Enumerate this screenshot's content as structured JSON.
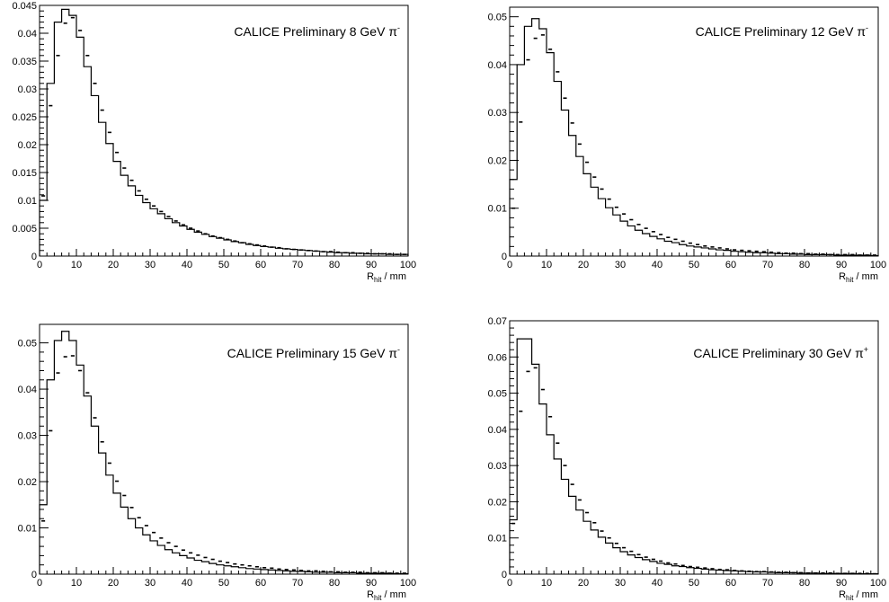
{
  "chart_data": [
    {
      "type": "histogram",
      "label": "CALICE Preliminary 8 GeV",
      "particle": "π",
      "charge": "-",
      "xlabel": "R",
      "xlabel_sub": "hit",
      "xlabel_unit": " / mm",
      "xlim": [
        0,
        100
      ],
      "ylim": [
        0,
        0.045
      ],
      "xticks": [
        0,
        10,
        20,
        30,
        40,
        50,
        60,
        70,
        80,
        90,
        100
      ],
      "yticks": [
        0,
        0.005,
        0.01,
        0.015,
        0.02,
        0.025,
        0.03,
        0.035,
        0.04,
        0.045
      ],
      "ytick_labels": [
        "0",
        "0.005",
        "0.01",
        "0.015",
        "0.02",
        "0.025",
        "0.03",
        "0.035",
        "0.04",
        "0.045"
      ],
      "bin_width": 2,
      "series": [
        {
          "style": "line",
          "values": [
            0.01,
            0.031,
            0.042,
            0.0443,
            0.0432,
            0.0393,
            0.034,
            0.0288,
            0.024,
            0.0202,
            0.017,
            0.0145,
            0.0126,
            0.0109,
            0.0096,
            0.0085,
            0.0076,
            0.0067,
            0.006,
            0.0054,
            0.0048,
            0.0043,
            0.0039,
            0.0035,
            0.0032,
            0.0029,
            0.0026,
            0.0024,
            0.0021,
            0.0019,
            0.0017,
            0.0016,
            0.0014,
            0.0013,
            0.0012,
            0.0011,
            0.001,
            0.0009,
            0.0008,
            0.0007,
            0.0006,
            0.0006,
            0.0005,
            0.0005,
            0.0004,
            0.0004,
            0.0004,
            0.0003,
            0.0003,
            0.0003
          ]
        },
        {
          "style": "markers",
          "values": [
            0.0108,
            0.027,
            0.036,
            0.0418,
            0.0428,
            0.0405,
            0.036,
            0.031,
            0.0262,
            0.0222,
            0.0186,
            0.0158,
            0.0136,
            0.0117,
            0.0102,
            0.009,
            0.008,
            0.0071,
            0.0063,
            0.0056,
            0.005,
            0.0045,
            0.004,
            0.0036,
            0.0033,
            0.003,
            0.0027,
            0.0024,
            0.0022,
            0.002,
            0.0018,
            0.0016,
            0.0015,
            0.0013,
            0.0012,
            0.0011,
            0.001,
            0.0009,
            0.0008,
            0.0008,
            0.0007,
            0.0006,
            0.0006,
            0.0005,
            0.0005,
            0.0004,
            0.0004,
            0.0004,
            0.0003,
            0.0003
          ]
        }
      ]
    },
    {
      "type": "histogram",
      "label": "CALICE Preliminary 12 GeV",
      "particle": "π",
      "charge": "-",
      "xlabel": "R",
      "xlabel_sub": "hit",
      "xlabel_unit": " / mm",
      "xlim": [
        0,
        100
      ],
      "ylim": [
        0,
        0.052
      ],
      "xticks": [
        0,
        10,
        20,
        30,
        40,
        50,
        60,
        70,
        80,
        90,
        100
      ],
      "yticks": [
        0,
        0.01,
        0.02,
        0.03,
        0.04,
        0.05
      ],
      "ytick_labels": [
        "0",
        "0.01",
        "0.02",
        "0.03",
        "0.04",
        "0.05"
      ],
      "bin_width": 2,
      "series": [
        {
          "style": "line",
          "values": [
            0.016,
            0.04,
            0.048,
            0.0496,
            0.0475,
            0.0425,
            0.0365,
            0.0305,
            0.0252,
            0.0208,
            0.0172,
            0.0144,
            0.012,
            0.0101,
            0.0086,
            0.0073,
            0.0063,
            0.0054,
            0.0047,
            0.0041,
            0.0036,
            0.0031,
            0.0028,
            0.0024,
            0.0021,
            0.0019,
            0.0017,
            0.0015,
            0.0013,
            0.0012,
            0.001,
            0.0009,
            0.0008,
            0.0007,
            0.0007,
            0.0006,
            0.0005,
            0.0005,
            0.0004,
            0.0004,
            0.0003,
            0.0003,
            0.0003,
            0.0003,
            0.0002,
            0.0002,
            0.0002,
            0.0002,
            0.0002,
            0.0001
          ]
        },
        {
          "style": "markers",
          "values": [
            0.01,
            0.028,
            0.041,
            0.0455,
            0.0462,
            0.0432,
            0.0385,
            0.033,
            0.0278,
            0.0234,
            0.0196,
            0.0165,
            0.014,
            0.0119,
            0.0102,
            0.0088,
            0.0076,
            0.0066,
            0.0058,
            0.0051,
            0.0045,
            0.0039,
            0.0035,
            0.0031,
            0.0027,
            0.0024,
            0.0021,
            0.0019,
            0.0017,
            0.0015,
            0.0013,
            0.0012,
            0.0011,
            0.001,
            0.0009,
            0.0008,
            0.0007,
            0.0006,
            0.0006,
            0.0005,
            0.0005,
            0.0004,
            0.0004,
            0.0003,
            0.0003,
            0.0003,
            0.0003,
            0.0002,
            0.0002,
            0.0002
          ]
        }
      ]
    },
    {
      "type": "histogram",
      "label": "CALICE Preliminary 15 GeV",
      "particle": "π",
      "charge": "-",
      "xlabel": "R",
      "xlabel_sub": "hit",
      "xlabel_unit": " / mm",
      "xlim": [
        0,
        100
      ],
      "ylim": [
        0,
        0.054
      ],
      "xticks": [
        0,
        10,
        20,
        30,
        40,
        50,
        60,
        70,
        80,
        90,
        100
      ],
      "yticks": [
        0,
        0.01,
        0.02,
        0.03,
        0.04,
        0.05
      ],
      "ytick_labels": [
        "0",
        "0.01",
        "0.02",
        "0.03",
        "0.04",
        "0.05"
      ],
      "bin_width": 2,
      "series": [
        {
          "style": "line",
          "values": [
            0.015,
            0.042,
            0.0505,
            0.0525,
            0.0505,
            0.0452,
            0.0385,
            0.032,
            0.0262,
            0.0214,
            0.0175,
            0.0145,
            0.012,
            0.01,
            0.0085,
            0.0072,
            0.0062,
            0.0053,
            0.0046,
            0.004,
            0.0035,
            0.003,
            0.0027,
            0.0023,
            0.002,
            0.0018,
            0.0016,
            0.0014,
            0.0012,
            0.0011,
            0.001,
            0.0009,
            0.0008,
            0.0007,
            0.0006,
            0.0006,
            0.0005,
            0.0004,
            0.0004,
            0.0004,
            0.0003,
            0.0003,
            0.0003,
            0.0002,
            0.0002,
            0.0002,
            0.0002,
            0.0002,
            0.0001,
            0.0001
          ]
        },
        {
          "style": "markers",
          "values": [
            0.0115,
            0.031,
            0.0435,
            0.047,
            0.0472,
            0.044,
            0.0392,
            0.0338,
            0.0286,
            0.024,
            0.0201,
            0.017,
            0.0144,
            0.0122,
            0.0105,
            0.009,
            0.0078,
            0.0068,
            0.006,
            0.0052,
            0.0046,
            0.0041,
            0.0036,
            0.0032,
            0.0028,
            0.0025,
            0.0022,
            0.002,
            0.0018,
            0.0016,
            0.0014,
            0.0013,
            0.0011,
            0.001,
            0.0009,
            0.0008,
            0.0007,
            0.0007,
            0.0006,
            0.0005,
            0.0005,
            0.0004,
            0.0004,
            0.0004,
            0.0003,
            0.0003,
            0.0003,
            0.0002,
            0.0002,
            0.0002
          ]
        }
      ]
    },
    {
      "type": "histogram",
      "label": "CALICE Preliminary 30 GeV",
      "particle": "π",
      "charge": "+",
      "xlabel": "R",
      "xlabel_sub": "hit",
      "xlabel_unit": " / mm",
      "xlim": [
        0,
        100
      ],
      "ylim": [
        0,
        0.07
      ],
      "xticks": [
        0,
        10,
        20,
        30,
        40,
        50,
        60,
        70,
        80,
        90,
        100
      ],
      "yticks": [
        0,
        0.01,
        0.02,
        0.03,
        0.04,
        0.05,
        0.06,
        0.07
      ],
      "ytick_labels": [
        "0",
        "0.01",
        "0.02",
        "0.03",
        "0.04",
        "0.05",
        "0.06",
        "0.07"
      ],
      "bin_width": 2,
      "series": [
        {
          "style": "line",
          "values": [
            0.015,
            0.065,
            0.065,
            0.058,
            0.047,
            0.0385,
            0.0318,
            0.0262,
            0.0215,
            0.0177,
            0.0146,
            0.0122,
            0.0102,
            0.0086,
            0.0073,
            0.0062,
            0.0053,
            0.0046,
            0.004,
            0.0035,
            0.003,
            0.0027,
            0.0023,
            0.0021,
            0.0018,
            0.0016,
            0.0014,
            0.0012,
            0.0011,
            0.001,
            0.0009,
            0.0008,
            0.0007,
            0.0006,
            0.0006,
            0.0005,
            0.0004,
            0.0004,
            0.0004,
            0.0003,
            0.0003,
            0.0003,
            0.0002,
            0.0002,
            0.0002,
            0.0002,
            0.0002,
            0.0001,
            0.0001,
            0.0001
          ]
        },
        {
          "style": "markers",
          "values": [
            0.014,
            0.045,
            0.056,
            0.057,
            0.051,
            0.0435,
            0.0362,
            0.03,
            0.0248,
            0.0205,
            0.017,
            0.0142,
            0.0119,
            0.01,
            0.0085,
            0.0073,
            0.0063,
            0.0054,
            0.0047,
            0.0041,
            0.0036,
            0.0031,
            0.0028,
            0.0024,
            0.0021,
            0.0019,
            0.0017,
            0.0015,
            0.0013,
            0.0012,
            0.001,
            0.0009,
            0.0008,
            0.0007,
            0.0007,
            0.0006,
            0.0005,
            0.0005,
            0.0004,
            0.0004,
            0.0003,
            0.0003,
            0.0003,
            0.0003,
            0.0002,
            0.0002,
            0.0002,
            0.0002,
            0.0002,
            0.0001
          ]
        }
      ]
    }
  ]
}
